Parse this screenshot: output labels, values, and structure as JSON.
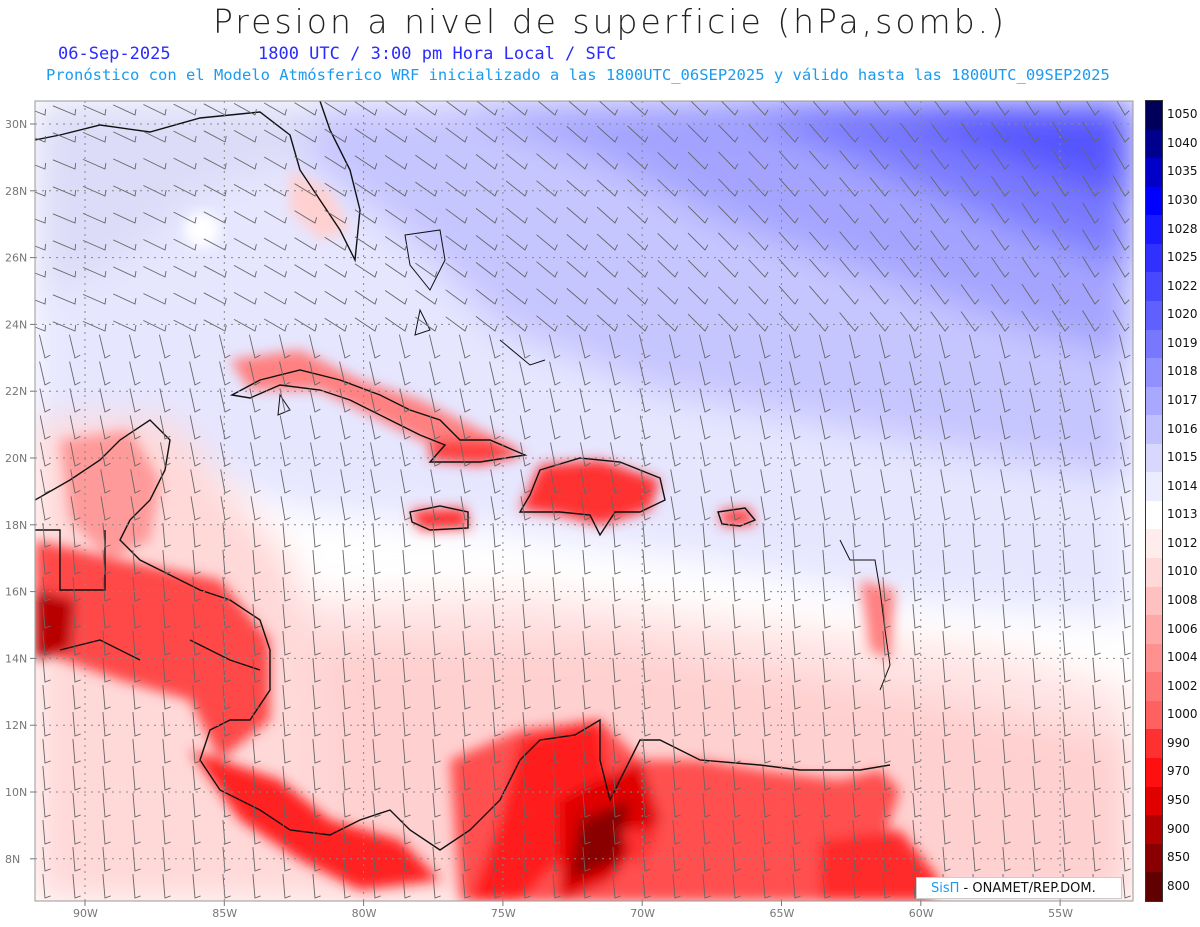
{
  "header": {
    "title": "Presion a nivel de superficie (hPa,somb.)",
    "date": "06-Sep-2025",
    "time": "1800 UTC / 3:00 pm Hora Local / SFC",
    "model_line": "Pronóstico con el Modelo Atmósferico WRF inicializado a las 1800UTC_06SEP2025 y válido hasta las  1800UTC_09SEP2025"
  },
  "axes": {
    "lat_labels": [
      "30N",
      "28N",
      "26N",
      "24N",
      "22N",
      "20N",
      "18N",
      "16N",
      "14N",
      "12N",
      "10N",
      "8N"
    ],
    "lon_labels": [
      "90W",
      "85W",
      "80W",
      "75W",
      "70W",
      "65W",
      "60W",
      "55W"
    ]
  },
  "colorbar": {
    "levels": [
      "1050",
      "1040",
      "1035",
      "1030",
      "1028",
      "1025",
      "1022",
      "1020",
      "1019",
      "1018",
      "1017",
      "1016",
      "1015",
      "1014",
      "1013",
      "1012",
      "1010",
      "1008",
      "1006",
      "1004",
      "1002",
      "1000",
      "990",
      "970",
      "950",
      "900",
      "850",
      "800"
    ],
    "colors": [
      "#00005a",
      "#00008f",
      "#0000c8",
      "#0000ff",
      "#1a1aff",
      "#3030ff",
      "#4848ff",
      "#6060ff",
      "#7878ff",
      "#9090ff",
      "#a8a8ff",
      "#c0c0ff",
      "#d8d8ff",
      "#ececff",
      "#ffffff",
      "#ffecec",
      "#ffd8d8",
      "#ffc0c0",
      "#ffa8a8",
      "#ff9090",
      "#ff7878",
      "#ff6060",
      "#ff3030",
      "#ff1010",
      "#e00000",
      "#b00000",
      "#880000",
      "#600000"
    ]
  },
  "credit": {
    "brand": "SisΠ",
    "text": " - ONAMET/REP.DOM."
  }
}
